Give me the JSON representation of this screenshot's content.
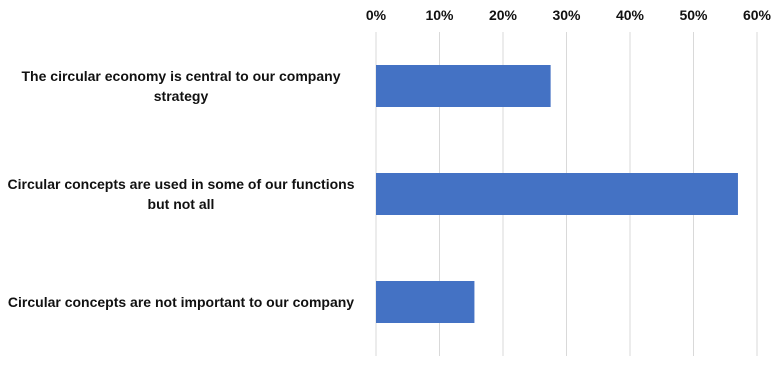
{
  "chart_data": {
    "type": "bar",
    "orientation": "horizontal",
    "categories": [
      "The circular economy is central to our company strategy",
      "Circular concepts are used in some of our functions but not all",
      "Circular concepts are not important to our company"
    ],
    "values": [
      27.5,
      57,
      15.5
    ],
    "unit": "%",
    "xlim": [
      0,
      60
    ],
    "xticks": [
      "0%",
      "10%",
      "20%",
      "30%",
      "40%",
      "50%",
      "60%"
    ],
    "xtick_values": [
      0,
      10,
      20,
      30,
      40,
      50,
      60
    ],
    "axis_position": "top",
    "grid": true,
    "bar_color": "#4472C4",
    "grid_color": "#D9D9D9",
    "title": "",
    "xlabel": "",
    "ylabel": ""
  }
}
